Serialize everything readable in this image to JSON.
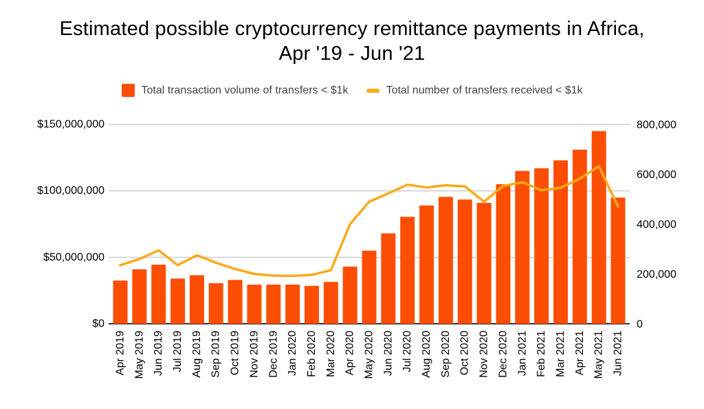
{
  "title": {
    "line1": "Estimated possible cryptocurrency remittance payments in Africa,",
    "line2": "Apr '19 - Jun '21"
  },
  "legend": {
    "items": [
      {
        "label": "Total transaction volume of transfers < $1k",
        "swatch": "square",
        "color": "#FC4E03"
      },
      {
        "label": "Total number of transfers received < $1k",
        "swatch": "line",
        "color": "#FBA919"
      }
    ]
  },
  "chart_data": {
    "type": "bar",
    "subtype": "combo-bar-line",
    "title": "Estimated possible cryptocurrency remittance payments in Africa, Apr '19 - Jun '21",
    "grid": true,
    "legend_position": "top",
    "categories": [
      "Apr 2019",
      "May 2019",
      "Jun 2019",
      "Jul 2019",
      "Aug 2019",
      "Sep 2019",
      "Oct 2019",
      "Nov 2019",
      "Dec 2019",
      "Jan 2020",
      "Feb 2020",
      "Mar 2020",
      "Apr 2020",
      "May 2020",
      "Jun 2020",
      "Jul 2020",
      "Aug 2020",
      "Sep 2020",
      "Oct 2020",
      "Nov 2020",
      "Dec 2020",
      "Jan 2021",
      "Feb 2021",
      "Mar 2021",
      "Apr 2021",
      "May 2021",
      "Jun 2021"
    ],
    "series": [
      {
        "name": "Total transaction volume of transfers < $1k",
        "type": "bar",
        "axis": "left",
        "color": "#FC4E03",
        "values": [
          32500000,
          41000000,
          44500000,
          34000000,
          36500000,
          30500000,
          33000000,
          29500000,
          29500000,
          29500000,
          28500000,
          31500000,
          43000000,
          55000000,
          68000000,
          80500000,
          89000000,
          95500000,
          93500000,
          91000000,
          105000000,
          115000000,
          117000000,
          123000000,
          131000000,
          145000000,
          95000000
        ]
      },
      {
        "name": "Total number of transfers received < $1k",
        "type": "line",
        "axis": "right",
        "color": "#FBA919",
        "values": [
          235000,
          260000,
          295000,
          235000,
          275000,
          245000,
          220000,
          200000,
          193000,
          192000,
          196000,
          215000,
          400000,
          490000,
          523000,
          558000,
          547000,
          556000,
          551000,
          490000,
          553000,
          568000,
          536000,
          546000,
          582000,
          632000,
          470000
        ]
      }
    ],
    "left_axis": {
      "range": [
        0,
        150000000
      ],
      "tick_values": [
        0,
        50000000,
        100000000,
        150000000
      ],
      "tick_labels": [
        "$0",
        "$50,000,000",
        "$100,000,000",
        "$150,000,000"
      ]
    },
    "right_axis": {
      "range": [
        0,
        800000
      ],
      "tick_values": [
        0,
        200000,
        400000,
        600000,
        800000
      ],
      "tick_labels": [
        "0",
        "200,000",
        "400,000",
        "600,000",
        "800,000"
      ]
    },
    "colors": {
      "grid": "#CCCCCC",
      "axis_line": "#333333",
      "tick_text": "#000000",
      "legend_text": "#424242",
      "background": "#FFFFFF"
    }
  }
}
